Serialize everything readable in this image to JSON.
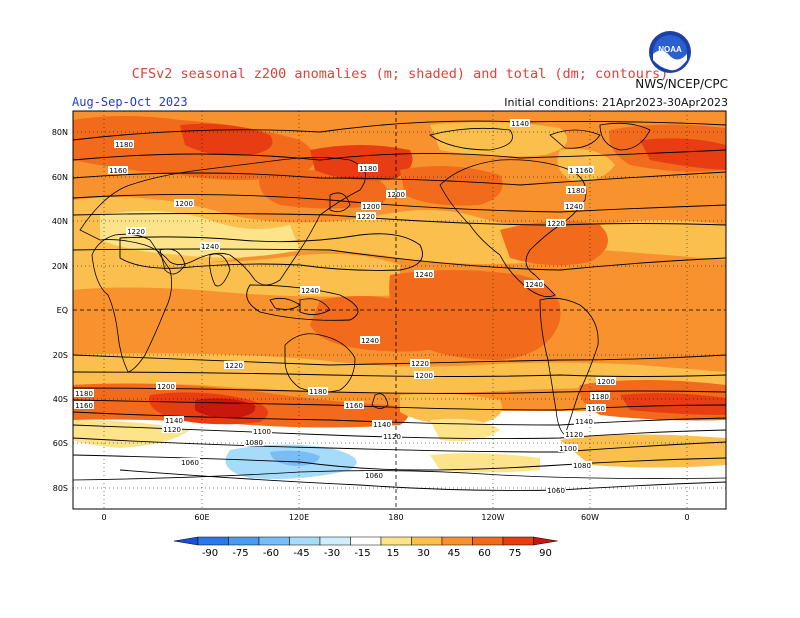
{
  "header": {
    "title": "CFSv2 seasonal z200 anomalies (m; shaded) and total (dm; contours)",
    "agency": "NWS/NCEP/CPC",
    "season": "Aug-Sep-Oct 2023",
    "initial_conditions": "Initial conditions: 21Apr2023-30Apr2023"
  },
  "logo": {
    "text": "NOAA",
    "icon": "noaa-logo"
  },
  "map": {
    "lat_labels": [
      "80N",
      "60N",
      "40N",
      "20N",
      "EQ",
      "20S",
      "40S",
      "60S",
      "80S"
    ],
    "lon_labels": [
      "0",
      "60E",
      "120E",
      "180",
      "120W",
      "60W",
      "0"
    ],
    "contour_labels": [
      {
        "text": "1140"
      },
      {
        "text": "1180"
      },
      {
        "text": "1160"
      },
      {
        "text": "1180"
      },
      {
        "text": "1180"
      },
      {
        "text": "1200"
      },
      {
        "text": "1200"
      },
      {
        "text": "1220"
      },
      {
        "text": "1240"
      },
      {
        "text": "1240"
      },
      {
        "text": "1220"
      },
      {
        "text": "1240"
      },
      {
        "text": "1240"
      },
      {
        "text": "1160"
      },
      {
        "text": "1180"
      },
      {
        "text": "1200"
      },
      {
        "text": "1200"
      },
      {
        "text": "1220"
      },
      {
        "text": "1240"
      },
      {
        "text": "1240"
      },
      {
        "text": "1220"
      },
      {
        "text": "1220"
      },
      {
        "text": "1200"
      },
      {
        "text": "1200"
      },
      {
        "text": "1180"
      },
      {
        "text": "1180"
      },
      {
        "text": "1160"
      },
      {
        "text": "1180"
      },
      {
        "text": "1160"
      },
      {
        "text": "1140"
      },
      {
        "text": "1120"
      },
      {
        "text": "1140"
      },
      {
        "text": "1120"
      },
      {
        "text": "1120"
      },
      {
        "text": "1140"
      },
      {
        "text": "1160"
      },
      {
        "text": "1100"
      },
      {
        "text": "1080"
      },
      {
        "text": "1060"
      },
      {
        "text": "1060"
      },
      {
        "text": "1100"
      },
      {
        "text": "1080"
      },
      {
        "text": "1060"
      }
    ]
  },
  "colorbar": {
    "labels": [
      "-90",
      "-75",
      "-60",
      "-45",
      "-30",
      "-15",
      "15",
      "30",
      "45",
      "60",
      "75",
      "90"
    ],
    "colors": [
      "#1a50d8",
      "#2c78ea",
      "#4b9cf0",
      "#78bdf5",
      "#a6dbf9",
      "#cfeefc",
      "#ffffff",
      "#fde38a",
      "#fbbf4e",
      "#f8922e",
      "#f26a1c",
      "#e83d12",
      "#c8170c"
    ]
  }
}
